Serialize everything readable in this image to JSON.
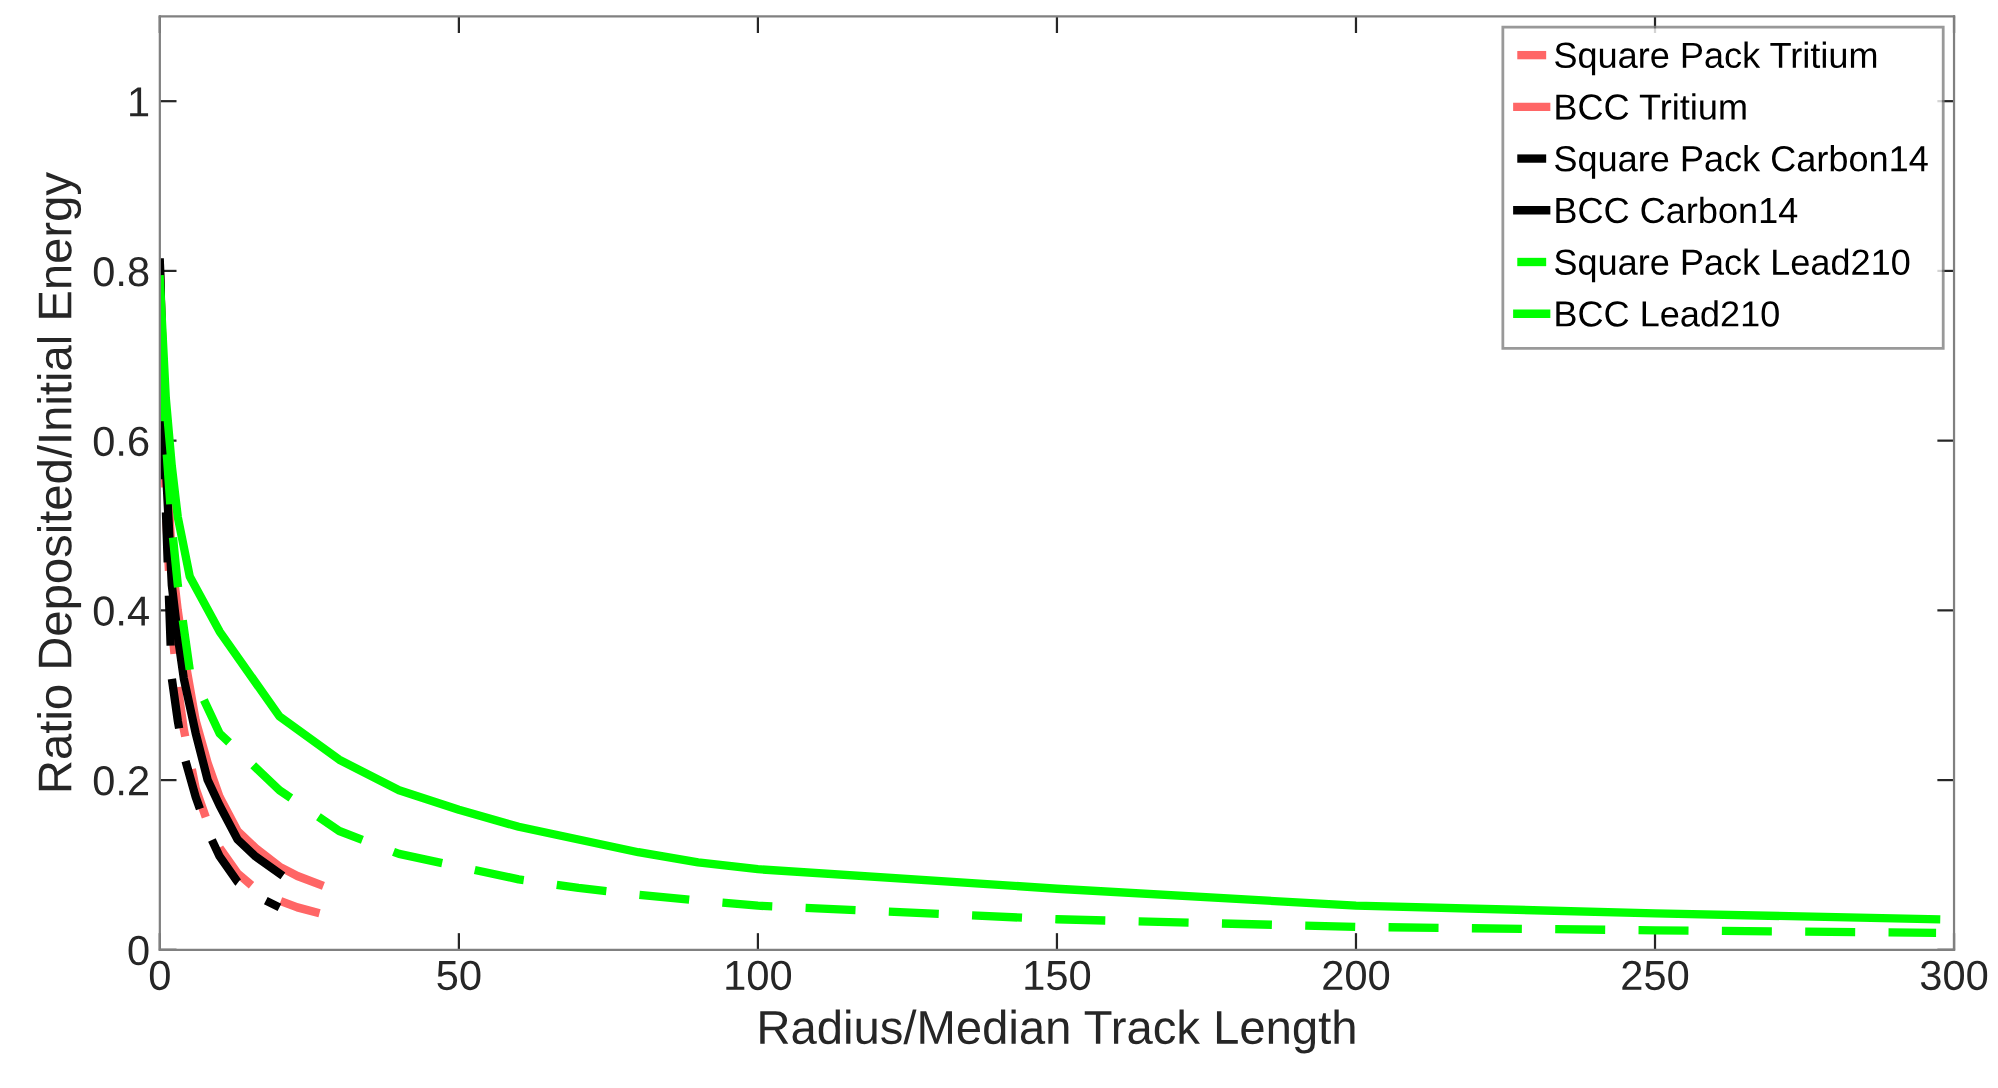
{
  "chart_data": {
    "type": "line",
    "xlabel": "Radius/Median Track Length",
    "ylabel": "Ratio Deposited/Initial Energy",
    "xlim": [
      0,
      300
    ],
    "ylim": [
      0,
      1.1
    ],
    "xticks": [
      0,
      50,
      100,
      150,
      200,
      250,
      300
    ],
    "yticks": [
      0,
      0.2,
      0.4,
      0.6,
      0.8,
      1
    ],
    "grid": false,
    "legend": "top right",
    "marker": "none",
    "series": [
      {
        "name": "Square Pack Tritium",
        "color": "#ff6666",
        "line_style": "dashed",
        "x": [
          0,
          1,
          2,
          3,
          4,
          6,
          8,
          10,
          13,
          16,
          20,
          23,
          26.7
        ],
        "values": [
          0.8,
          0.52,
          0.38,
          0.31,
          0.26,
          0.19,
          0.15,
          0.12,
          0.09,
          0.072,
          0.058,
          0.05,
          0.043
        ]
      },
      {
        "name": "BCC Tritium",
        "color": "#ff6666",
        "line_style": "solid",
        "x": [
          0,
          1,
          2,
          3,
          4,
          6,
          8,
          10,
          13,
          16,
          20,
          23,
          26.7
        ],
        "values": [
          0.8,
          0.6,
          0.46,
          0.4,
          0.35,
          0.27,
          0.22,
          0.18,
          0.14,
          0.12,
          0.098,
          0.087,
          0.077
        ]
      },
      {
        "name": "Square Pack Carbon14",
        "color": "#000000",
        "line_style": "dashed",
        "x": [
          0,
          0.5,
          1,
          2,
          3,
          4,
          6,
          8,
          10,
          13,
          16,
          20
        ],
        "values": [
          0.81,
          0.62,
          0.52,
          0.32,
          0.27,
          0.23,
          0.18,
          0.14,
          0.11,
          0.08,
          0.064,
          0.05
        ]
      },
      {
        "name": "BCC Carbon14",
        "color": "#000000",
        "line_style": "solid",
        "x": [
          0,
          1,
          2,
          3,
          4,
          6,
          8,
          10,
          13,
          16,
          20
        ],
        "values": [
          0.81,
          0.57,
          0.43,
          0.37,
          0.32,
          0.255,
          0.2,
          0.17,
          0.13,
          0.11,
          0.09
        ]
      },
      {
        "name": "Square Pack Lead210",
        "color": "#00ff00",
        "line_style": "dashed",
        "x": [
          0,
          1,
          2,
          3,
          5,
          10,
          20,
          30,
          40,
          50,
          60,
          70,
          80,
          90,
          100,
          150,
          200,
          250,
          297
        ],
        "values": [
          0.78,
          0.6,
          0.5,
          0.43,
          0.33,
          0.255,
          0.188,
          0.14,
          0.113,
          0.098,
          0.083,
          0.073,
          0.065,
          0.058,
          0.052,
          0.036,
          0.027,
          0.023,
          0.02
        ]
      },
      {
        "name": "BCC Lead210",
        "color": "#00ff00",
        "line_style": "solid",
        "x": [
          0,
          1,
          2,
          3,
          5,
          10,
          20,
          30,
          40,
          50,
          60,
          70,
          80,
          90,
          100,
          150,
          200,
          250,
          297
        ],
        "values": [
          0.79,
          0.65,
          0.57,
          0.51,
          0.44,
          0.375,
          0.275,
          0.224,
          0.188,
          0.165,
          0.145,
          0.13,
          0.115,
          0.103,
          0.095,
          0.072,
          0.052,
          0.043,
          0.036
        ]
      }
    ]
  }
}
